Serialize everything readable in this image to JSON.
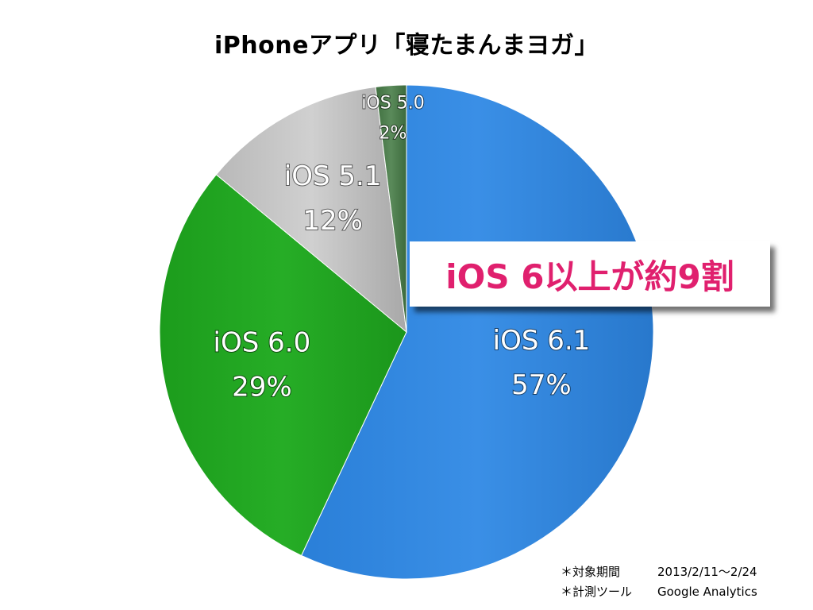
{
  "chart_data": {
    "type": "pie",
    "title": "iPhoneアプリ「寝たまんまヨガ」",
    "slices": [
      {
        "name": "iOS 6.1",
        "value": 57,
        "label": "57%",
        "color": "#2f86de"
      },
      {
        "name": "iOS 6.0",
        "value": 29,
        "label": "29%",
        "color": "#1fa61f"
      },
      {
        "name": "iOS 5.1",
        "value": 12,
        "label": "12%",
        "color": "#c4c4c4"
      },
      {
        "name": "iOS 5.0",
        "value": 2,
        "label": "2%",
        "color": "#4a7a4a"
      }
    ],
    "start": "12 o'clock",
    "direction": "clockwise",
    "legend": "none"
  },
  "callout": {
    "text": "iOS 6以上が約9割",
    "color": "#e0206e"
  },
  "footnotes": [
    {
      "label": "＊対象期間",
      "value": "2013/2/11〜2/24"
    },
    {
      "label": "＊計測ツール",
      "value": "Google Analytics"
    }
  ]
}
